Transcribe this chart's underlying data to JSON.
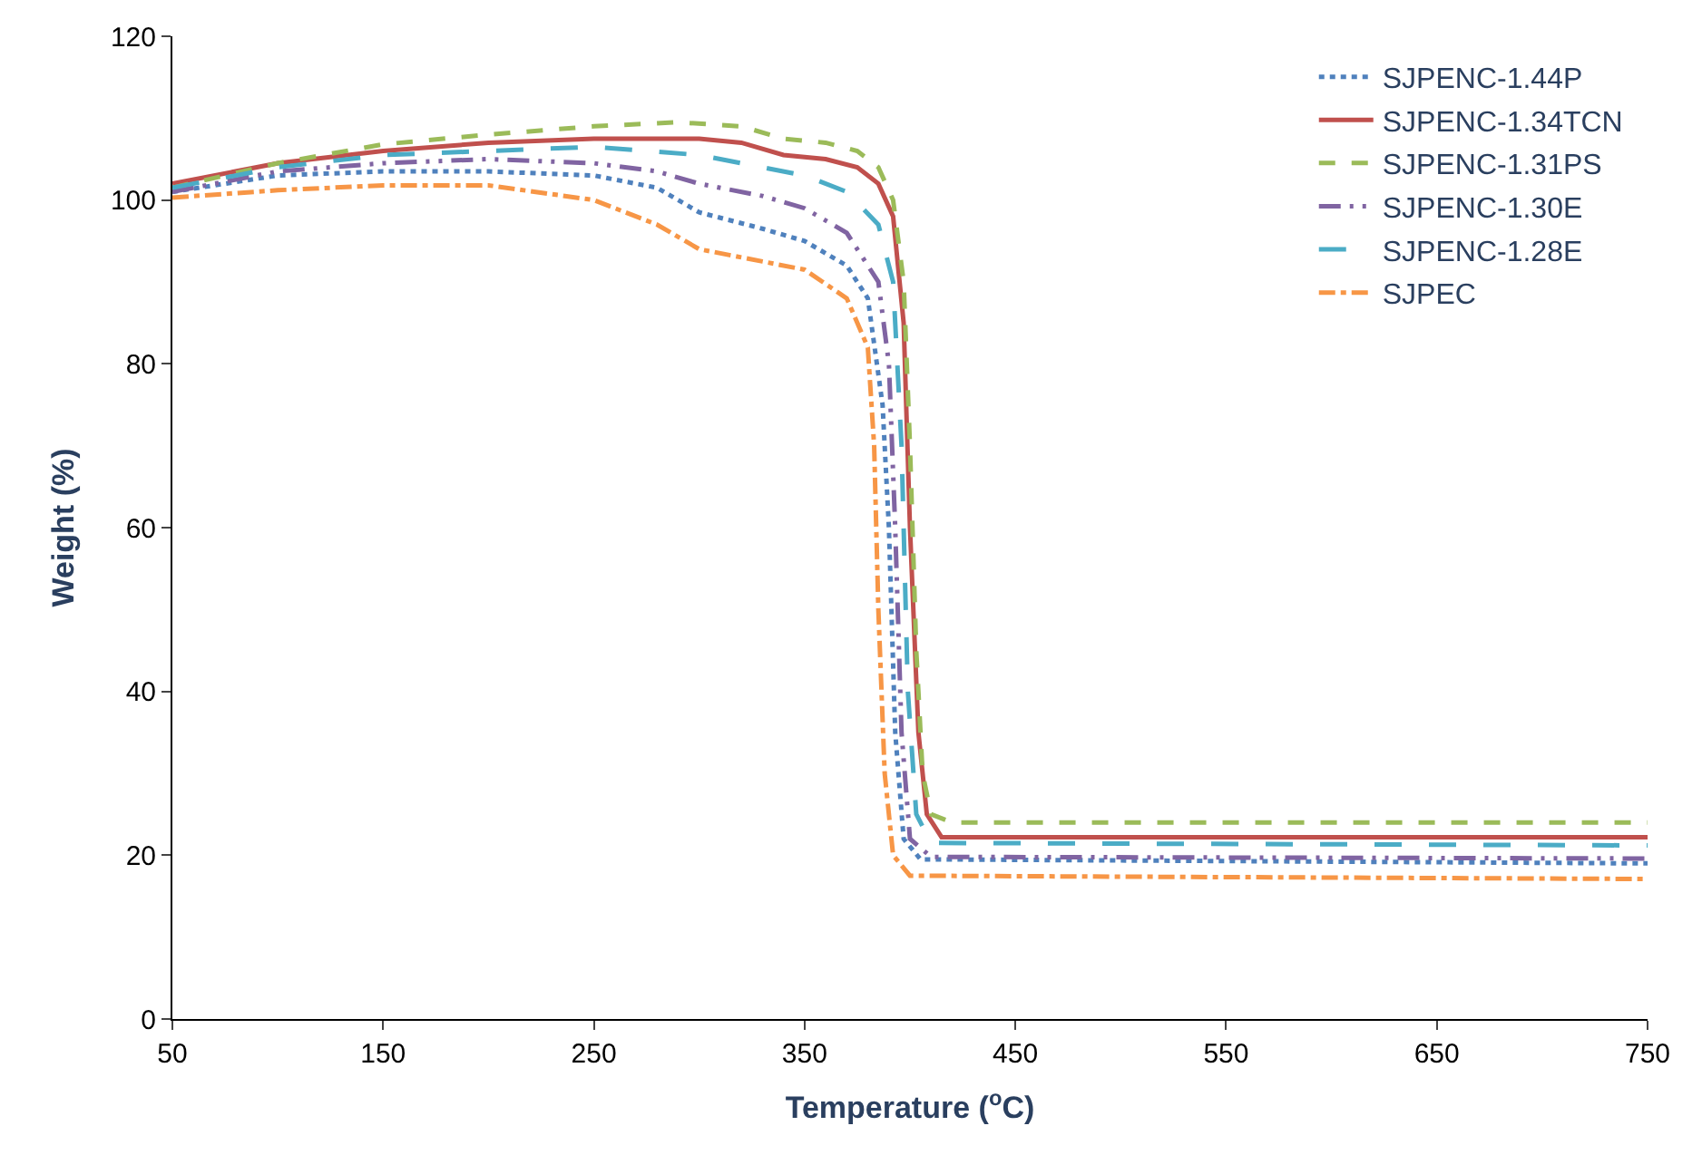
{
  "chart_data": {
    "type": "line",
    "xlabel": "Temperature ($^{o}$C)",
    "ylabel": "Weight (%)",
    "xlim": [
      50,
      750
    ],
    "xticks": [
      50,
      150,
      250,
      350,
      450,
      550,
      650,
      750
    ],
    "ylim": [
      0,
      120
    ],
    "yticks": [
      0,
      20,
      40,
      60,
      80,
      100,
      120
    ],
    "legend": "top right",
    "marker": "none",
    "series": [
      {
        "name": "SJPENC-1.44P",
        "color": "#4f81bd",
        "line_style": "dotted",
        "x": [
          50,
          100,
          150,
          200,
          250,
          280,
          300,
          330,
          350,
          370,
          380,
          387,
          390,
          393,
          397,
          405,
          750
        ],
        "values": [
          101,
          103,
          103.5,
          103.5,
          103,
          101.5,
          98.5,
          96.5,
          95,
          92,
          88,
          75,
          60,
          35,
          22,
          19.5,
          19
        ]
      },
      {
        "name": "SJPENC-1.34TCN",
        "color": "#c0504d",
        "line_style": "solid",
        "x": [
          50,
          100,
          150,
          200,
          250,
          300,
          320,
          340,
          360,
          375,
          385,
          392,
          397,
          400,
          404,
          408,
          415,
          750
        ],
        "values": [
          102,
          104.5,
          106,
          107,
          107.5,
          107.5,
          107,
          105.5,
          105,
          104,
          102,
          98,
          85,
          60,
          35,
          25,
          22.2,
          22.2
        ]
      },
      {
        "name": "SJPENC-1.31PS",
        "color": "#9bbb59",
        "line_style": "dashed",
        "x": [
          50,
          100,
          150,
          200,
          250,
          290,
          320,
          340,
          360,
          375,
          385,
          392,
          397,
          400,
          403,
          406,
          410,
          420,
          750
        ],
        "values": [
          101.5,
          104.5,
          106.8,
          108,
          109,
          109.5,
          109,
          107.5,
          107,
          106,
          104,
          100,
          90,
          70,
          45,
          30,
          25,
          24,
          24
        ]
      },
      {
        "name": "SJPENC-1.30E",
        "color": "#8064a2",
        "line_style": "dashdotdot",
        "x": [
          50,
          100,
          150,
          200,
          250,
          280,
          300,
          330,
          350,
          370,
          385,
          390,
          393,
          396,
          400,
          410,
          750
        ],
        "values": [
          101,
          103.5,
          104.5,
          105,
          104.5,
          103.5,
          102,
          100.5,
          99,
          96,
          90,
          80,
          60,
          35,
          22,
          19.8,
          19.6
        ]
      },
      {
        "name": "SJPENC-1.28E",
        "color": "#4bacc6",
        "line_style": "longdash",
        "x": [
          50,
          100,
          150,
          200,
          250,
          300,
          330,
          350,
          370,
          385,
          392,
          396,
          399,
          403,
          410,
          750
        ],
        "values": [
          101.5,
          104,
          105.5,
          106,
          106.5,
          105.5,
          104,
          103,
          101,
          97,
          90,
          70,
          40,
          25,
          21.5,
          21.2
        ]
      },
      {
        "name": "SJPEC",
        "color": "#f79646",
        "line_style": "dashdot",
        "x": [
          50,
          100,
          150,
          200,
          250,
          280,
          300,
          330,
          350,
          370,
          380,
          383,
          385,
          388,
          392,
          400,
          750
        ],
        "values": [
          100.3,
          101.2,
          101.8,
          101.8,
          100,
          97,
          94,
          92.5,
          91.5,
          88,
          82,
          70,
          50,
          30,
          20,
          17.5,
          17.1
        ]
      }
    ]
  }
}
